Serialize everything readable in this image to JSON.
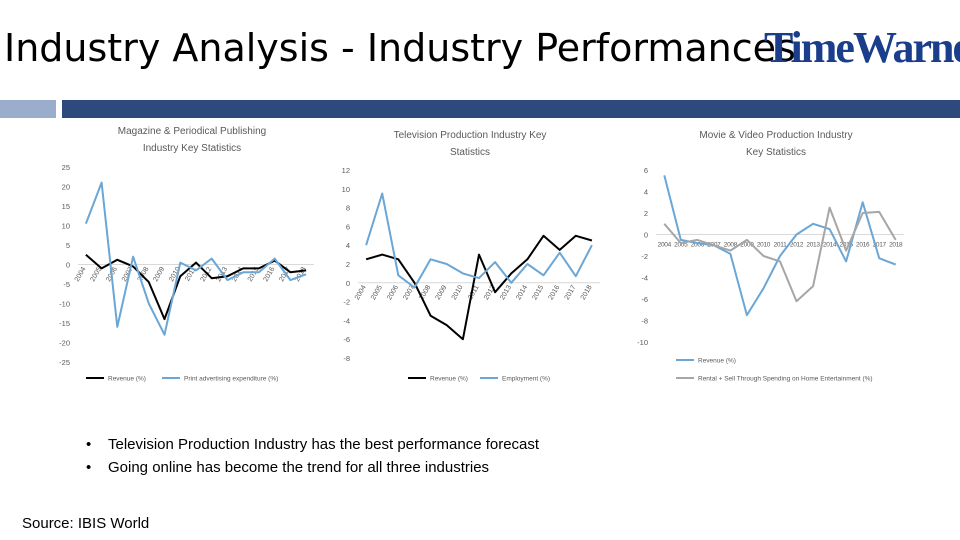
{
  "slide": {
    "title": "Industry Analysis -  Industry Performances",
    "logo_text": "TimeWarner",
    "bullets": [
      "Television Production Industry has the best performance forecast",
      "Going online has become the trend for all three industries"
    ],
    "source": "Source: IBIS World"
  },
  "colors": {
    "accent_light": "#9aadcc",
    "accent_dark": "#2e4a7d",
    "logo": "#1a3e8c",
    "series_black": "#000000",
    "series_blue": "#6aa6d6",
    "series_gray": "#a6a6a6"
  },
  "chart_data": [
    {
      "type": "line",
      "title": "Magazine & Periodical Publishing Industry Key Statistics",
      "categories": [
        "2004",
        "2005",
        "2006",
        "2007",
        "2008",
        "2009",
        "2010",
        "2011",
        "2012",
        "2013",
        "2014",
        "2015",
        "2016",
        "2017",
        "2018"
      ],
      "ylim": [
        -25,
        25
      ],
      "yticks": [
        25,
        20,
        15,
        10,
        5,
        0,
        -5,
        -10,
        -15,
        -20,
        -25
      ],
      "legend": "bottom",
      "series": [
        {
          "name": "Revenue (%)",
          "color": "#000000",
          "values": [
            2.5,
            -1,
            1.2,
            -0.5,
            -4.5,
            -14,
            -3,
            0.5,
            -3.5,
            -3,
            -1,
            -1,
            1,
            -2,
            -1.5
          ]
        },
        {
          "name": "Print advertising expenditure (%)",
          "color": "#6aa6d6",
          "values": [
            10.5,
            21,
            -16,
            2,
            -10,
            -18,
            0.5,
            -1.5,
            1.5,
            -4,
            -2,
            -2,
            1.5,
            -4,
            -2.5
          ]
        }
      ]
    },
    {
      "type": "line",
      "title": "Television Production Industry Key Statistics",
      "categories": [
        "2004",
        "2005",
        "2006",
        "2007",
        "2008",
        "2009",
        "2010",
        "2011",
        "2012",
        "2013",
        "2014",
        "2015",
        "2016",
        "2017",
        "2018"
      ],
      "ylim": [
        -8,
        12
      ],
      "yticks": [
        12,
        10,
        8,
        6,
        4,
        2,
        0,
        -2,
        -4,
        -6,
        -8
      ],
      "legend": "bottom",
      "series": [
        {
          "name": "Revenue (%)",
          "color": "#000000",
          "values": [
            2.5,
            3,
            2.5,
            0,
            -3.5,
            -4.5,
            -6,
            3,
            -1,
            1,
            2.5,
            5,
            3.5,
            5,
            4.5
          ]
        },
        {
          "name": "Employment (%)",
          "color": "#6aa6d6",
          "values": [
            4,
            9.5,
            0.8,
            -0.5,
            2.5,
            2,
            1,
            0.5,
            2.2,
            0,
            2,
            0.8,
            3.2,
            0.7,
            4
          ]
        }
      ]
    },
    {
      "type": "line",
      "title": "Movie & Video Production Industry Key Statistics",
      "categories": [
        "2004",
        "2005",
        "2006",
        "2007",
        "2008",
        "2009",
        "2010",
        "2011",
        "2012",
        "2013",
        "2014",
        "2015",
        "2016",
        "2017",
        "2018"
      ],
      "ylim": [
        -10,
        6
      ],
      "yticks": [
        6,
        4,
        2,
        0,
        -2,
        -4,
        -6,
        -8,
        -10
      ],
      "legend": "bottom",
      "series": [
        {
          "name": "Revenue (%)",
          "color": "#6aa6d6",
          "values": [
            5.5,
            -0.5,
            -0.8,
            -1,
            -1.8,
            -7.5,
            -5,
            -2,
            0,
            1,
            0.5,
            -2.5,
            3,
            -2.2,
            -2.8
          ]
        },
        {
          "name": "Rental + Sell Through Spending on Home Entertainment (%)",
          "color": "#a6a6a6",
          "values": [
            1,
            -0.8,
            -0.5,
            -1,
            -1.5,
            -0.5,
            -2,
            -2.5,
            -6.2,
            -4.8,
            2.5,
            -1.5,
            2,
            2.1,
            -0.5
          ]
        }
      ]
    }
  ]
}
